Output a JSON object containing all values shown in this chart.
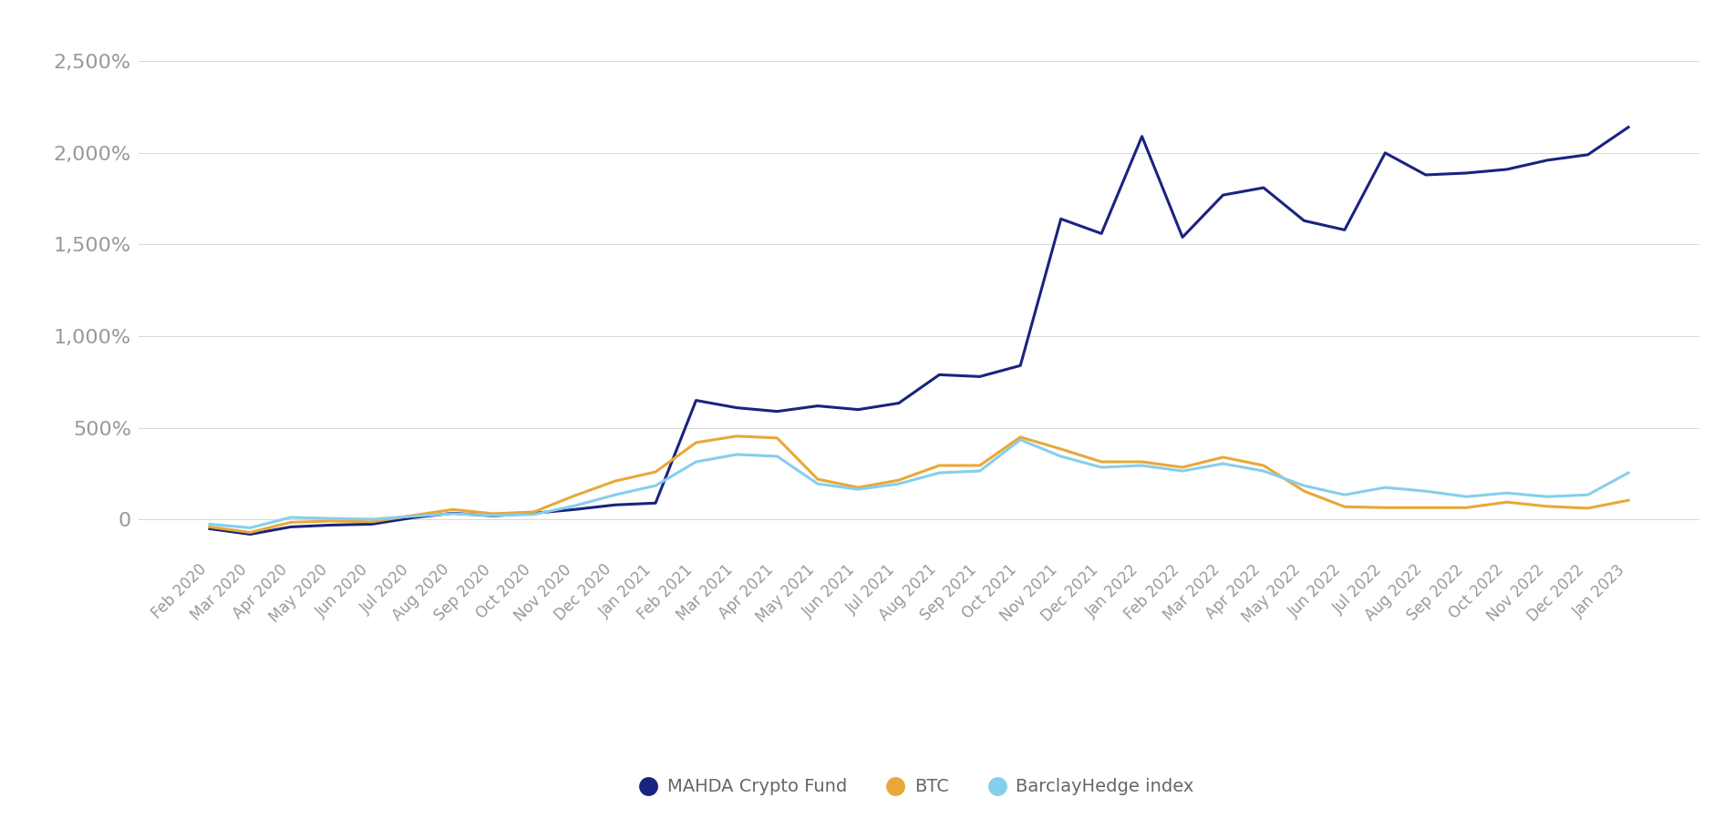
{
  "labels": [
    "Feb 2020",
    "Mar 2020",
    "Apr 2020",
    "May 2020",
    "Jun 2020",
    "Jul 2020",
    "Aug 2020",
    "Sep 2020",
    "Oct 2020",
    "Nov 2020",
    "Dec 2020",
    "Jan 2021",
    "Feb 2021",
    "Mar 2021",
    "Apr 2021",
    "May 2021",
    "Jun 2021",
    "Jul 2021",
    "Aug 2021",
    "Sep 2021",
    "Oct 2021",
    "Nov 2021",
    "Dec 2021",
    "Jan 2022",
    "Feb 2022",
    "Mar 2022",
    "Apr 2022",
    "May 2022",
    "Jun 2022",
    "Jul 2022",
    "Aug 2022",
    "Sep 2022",
    "Oct 2022",
    "Nov 2022",
    "Dec 2022",
    "Jan 2023"
  ],
  "mahda": [
    -50,
    -80,
    -40,
    -30,
    -25,
    10,
    35,
    20,
    35,
    55,
    80,
    90,
    650,
    610,
    590,
    620,
    600,
    635,
    790,
    780,
    840,
    1640,
    1560,
    2090,
    1540,
    1770,
    1810,
    1630,
    1580,
    2000,
    1880,
    1890,
    1910,
    1960,
    1990,
    2140
  ],
  "btc": [
    -40,
    -70,
    -15,
    -8,
    -12,
    22,
    55,
    32,
    42,
    130,
    210,
    260,
    420,
    455,
    445,
    220,
    175,
    215,
    295,
    295,
    450,
    385,
    315,
    315,
    285,
    340,
    295,
    155,
    70,
    65,
    65,
    65,
    95,
    72,
    62,
    105
  ],
  "barclay": [
    -25,
    -45,
    12,
    6,
    2,
    18,
    32,
    22,
    28,
    75,
    135,
    185,
    315,
    355,
    345,
    195,
    165,
    195,
    255,
    265,
    435,
    345,
    285,
    295,
    265,
    305,
    265,
    185,
    135,
    175,
    155,
    125,
    145,
    125,
    135,
    255
  ],
  "mahda_color": "#1a237e",
  "btc_color": "#e8a838",
  "barclay_color": "#87ceeb",
  "background_color": "#ffffff",
  "grid_color": "#d8d8d8",
  "tick_color": "#999999",
  "label_color": "#666666",
  "ylim": [
    -200,
    2700
  ],
  "yticks": [
    0,
    500,
    1000,
    1500,
    2000,
    2500
  ],
  "ytick_labels": [
    "0",
    "500%",
    "1,000%",
    "1,500%",
    "2,000%",
    "2,500%"
  ],
  "legend_labels": [
    "MAHDA Crypto Fund",
    "BTC",
    "BarclayHedge index"
  ],
  "line_width": 2.2,
  "ytick_fontsize": 16,
  "xtick_fontsize": 12
}
